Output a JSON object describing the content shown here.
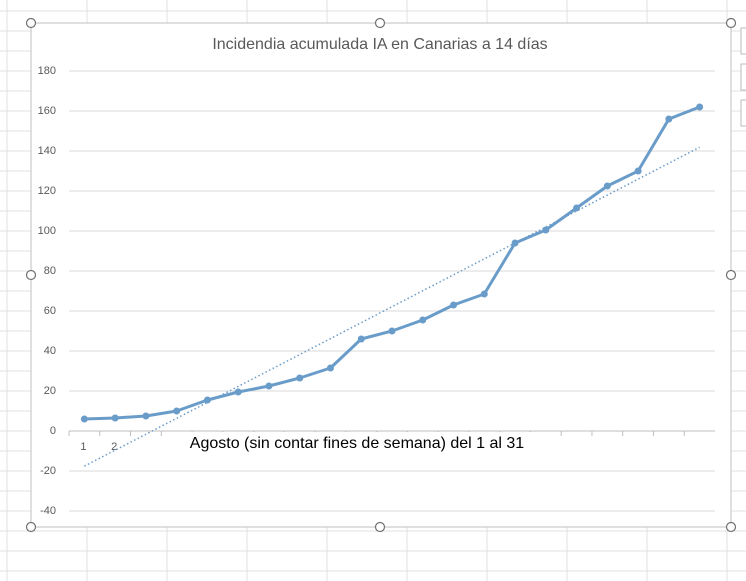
{
  "chart_data": {
    "type": "line",
    "title": "Incidendia acumulada IA en Canarias a 14 días",
    "x_label": "Agosto (sin contar fines de semana) del 1 al 31",
    "categories": [
      "1",
      "2",
      null,
      null,
      null,
      null,
      null,
      null,
      null,
      null,
      null,
      null,
      null,
      null,
      null,
      null,
      null,
      null,
      null,
      null,
      null
    ],
    "series": [
      {
        "color": "#6a9cc9",
        "values": [
          6,
          6.5,
          7.5,
          10,
          15.5,
          19.5,
          22.5,
          26.5,
          31.5,
          46,
          50,
          55.5,
          63,
          68.5,
          94,
          100.5,
          111.5,
          122.5,
          130,
          156,
          162
        ]
      }
    ],
    "trendline": "linear",
    "ylim": [
      -40,
      180
    ],
    "yticks": [
      -40,
      -20,
      0,
      20,
      40,
      60,
      80,
      100,
      120,
      140,
      160,
      180
    ],
    "grid": true
  }
}
